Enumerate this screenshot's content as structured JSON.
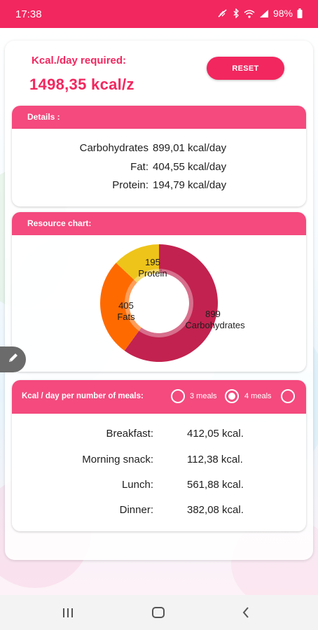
{
  "status_bar": {
    "time": "17:38",
    "battery": "98%"
  },
  "header": {
    "kcal_label": "Kcal./day required:",
    "kcal_value": "1498,35  kcal/z",
    "reset_label": "RESET"
  },
  "details": {
    "title": "Details :",
    "rows": [
      {
        "label": "Carbohydrates",
        "value": "899,01  kcal/day"
      },
      {
        "label": "Fat:",
        "value": "404,55  kcal/day"
      },
      {
        "label": "Protein:",
        "value": "194,79  kcal/day"
      }
    ]
  },
  "resource_chart": {
    "title": "Resource chart:"
  },
  "chart_data": {
    "type": "pie",
    "title": "Resource chart:",
    "series": [
      {
        "name": "Carbohydrates",
        "value": 899,
        "color": "#c2224f"
      },
      {
        "name": "Fats",
        "value": 405,
        "color": "#ff6a00"
      },
      {
        "name": "Protein",
        "value": 195,
        "color": "#eec41a"
      }
    ],
    "labels": [
      {
        "number": "899",
        "name": "Carbohydrates"
      },
      {
        "number": "405",
        "name": "Fats"
      },
      {
        "number": "195",
        "name": "Protein"
      }
    ],
    "donut": true
  },
  "meals": {
    "title": "Kcal / day per number of meals:",
    "options": [
      {
        "label": "3 meals",
        "checked": false
      },
      {
        "label": "4  meals",
        "checked": true
      },
      {
        "label": "",
        "checked": false
      }
    ],
    "rows": [
      {
        "label": "Breakfast:",
        "value": "412,05  kcal."
      },
      {
        "label": "Morning snack:",
        "value": "112,38  kcal."
      },
      {
        "label": "Lunch:",
        "value": "561,88  kcal."
      },
      {
        "label": "Dinner:",
        "value": "382,08  kcal."
      }
    ]
  },
  "colors": {
    "accent": "#f2275f",
    "header": "#f44a7e"
  }
}
